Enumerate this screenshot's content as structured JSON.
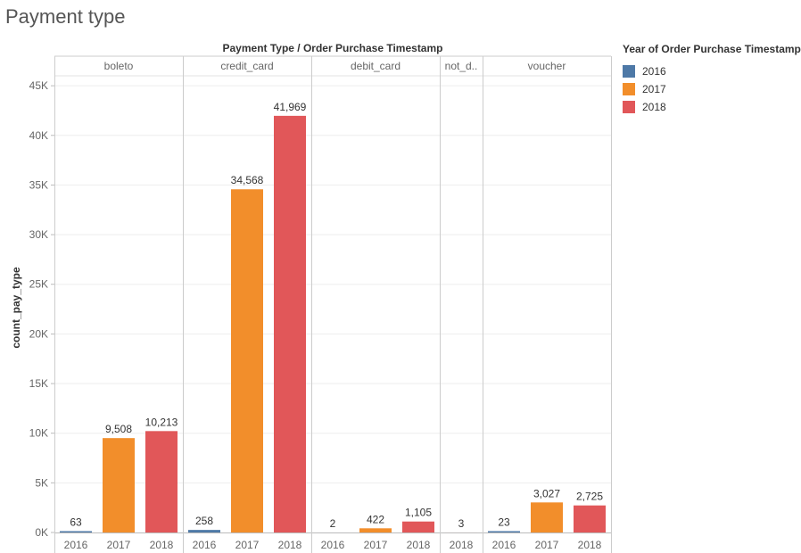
{
  "chart_data": {
    "type": "bar",
    "title": "Payment type",
    "header_title": "Payment Type  /  Order Purchase Timestamp",
    "ylabel": "count_pay_type",
    "ylim": [
      0,
      46000
    ],
    "y_ticks": [
      {
        "value": 0,
        "label": "0K"
      },
      {
        "value": 5000,
        "label": "5K"
      },
      {
        "value": 10000,
        "label": "10K"
      },
      {
        "value": 15000,
        "label": "15K"
      },
      {
        "value": 20000,
        "label": "20K"
      },
      {
        "value": 25000,
        "label": "25K"
      },
      {
        "value": 30000,
        "label": "30K"
      },
      {
        "value": 35000,
        "label": "35K"
      },
      {
        "value": 40000,
        "label": "40K"
      },
      {
        "value": 45000,
        "label": "45K"
      }
    ],
    "legend_title": "Year of Order Purchase Timestamp",
    "legend": [
      {
        "label": "2016",
        "color": "#4e79a7"
      },
      {
        "label": "2017",
        "color": "#f28e2b"
      },
      {
        "label": "2018",
        "color": "#e15759"
      }
    ],
    "groups": [
      {
        "name": "boleto",
        "bars": [
          {
            "year": "2016",
            "value": 63,
            "label": "63"
          },
          {
            "year": "2017",
            "value": 9508,
            "label": "9,508"
          },
          {
            "year": "2018",
            "value": 10213,
            "label": "10,213"
          }
        ]
      },
      {
        "name": "credit_card",
        "bars": [
          {
            "year": "2016",
            "value": 258,
            "label": "258"
          },
          {
            "year": "2017",
            "value": 34568,
            "label": "34,568"
          },
          {
            "year": "2018",
            "value": 41969,
            "label": "41,969"
          }
        ]
      },
      {
        "name": "debit_card",
        "bars": [
          {
            "year": "2016",
            "value": 2,
            "label": "2"
          },
          {
            "year": "2017",
            "value": 422,
            "label": "422"
          },
          {
            "year": "2018",
            "value": 1105,
            "label": "1,105"
          }
        ]
      },
      {
        "name": "not_d..",
        "bars": [
          {
            "year": "2018",
            "value": 3,
            "label": "3"
          }
        ]
      },
      {
        "name": "voucher",
        "bars": [
          {
            "year": "2016",
            "value": 23,
            "label": "23"
          },
          {
            "year": "2017",
            "value": 3027,
            "label": "3,027"
          },
          {
            "year": "2018",
            "value": 2725,
            "label": "2,725"
          }
        ]
      }
    ]
  }
}
